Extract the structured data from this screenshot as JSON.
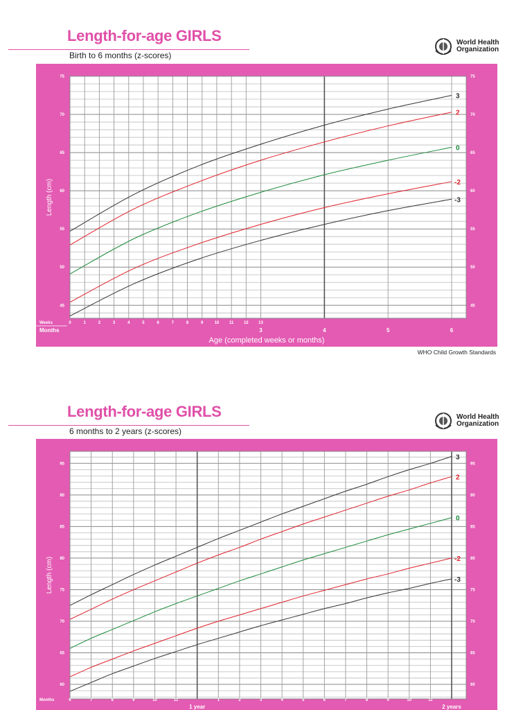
{
  "organization": "World Health Organization",
  "organization_lines": [
    "World Health",
    "Organization"
  ],
  "footer": "WHO Child Growth Standards",
  "colors": {
    "pink": "#e35bb3",
    "title": "#e04fa8",
    "z3": "#333333",
    "z2": "#e0202a",
    "z0": "#1a8a3a"
  },
  "chart_data": [
    {
      "type": "line",
      "title": "Length-for-age GIRLS",
      "subtitle": "Birth to 6 months (z-scores)",
      "ylabel": "Length (cm)",
      "xlabel": "Age (completed weeks or months)",
      "ylim": [
        43.3,
        75
      ],
      "xlim": [
        0,
        6
      ],
      "grid": true,
      "y_ticks": [
        45,
        50,
        55,
        60,
        65,
        70,
        75
      ],
      "week_label": "Weeks",
      "month_label": "Months",
      "week_ticks": [
        "0",
        "1",
        "2",
        "3",
        "4",
        "5",
        "6",
        "7",
        "8",
        "9",
        "10",
        "11",
        "12",
        "13"
      ],
      "month_ticks": [
        "3",
        "4",
        "5",
        "6"
      ],
      "x_months": [
        0,
        1,
        2,
        3,
        4,
        5,
        6
      ],
      "series": [
        {
          "name": "3",
          "color": "#333333",
          "values": [
            54.7,
            59.5,
            63.2,
            66.1,
            68.6,
            70.7,
            72.5
          ]
        },
        {
          "name": "2",
          "color": "#e0202a",
          "values": [
            52.9,
            57.6,
            61.1,
            64.0,
            66.4,
            68.5,
            70.3
          ]
        },
        {
          "name": "0",
          "color": "#1a8a3a",
          "values": [
            49.1,
            53.7,
            57.1,
            59.8,
            62.1,
            64.0,
            65.7
          ]
        },
        {
          "name": "-2",
          "color": "#e0202a",
          "values": [
            45.4,
            49.8,
            53.0,
            55.6,
            57.8,
            59.6,
            61.2
          ]
        },
        {
          "name": "-3",
          "color": "#333333",
          "values": [
            43.6,
            47.8,
            51.0,
            53.5,
            55.6,
            57.4,
            58.9
          ]
        }
      ]
    },
    {
      "type": "line",
      "title": "Length-for-age GIRLS",
      "subtitle": "6 months to 2 years (z-scores)",
      "ylabel": "Length (cm)",
      "ylim": [
        57.7,
        96.9
      ],
      "xlim": [
        6,
        24
      ],
      "grid": true,
      "y_ticks": [
        60,
        65,
        70,
        75,
        80,
        85,
        90,
        95
      ],
      "month_label": "Months",
      "month_ticks": [
        "6",
        "7",
        "8",
        "9",
        "10",
        "11",
        "",
        "1",
        "2",
        "3",
        "4",
        "5",
        "6",
        "7",
        "8",
        "9",
        "10",
        "11",
        ""
      ],
      "year_labels": [
        "1 year",
        "2 years"
      ],
      "x_months": [
        6,
        7,
        8,
        9,
        10,
        11,
        12,
        13,
        14,
        15,
        16,
        17,
        18,
        19,
        20,
        21,
        22,
        23,
        24
      ],
      "series": [
        {
          "name": "3",
          "color": "#333333",
          "values": [
            72.5,
            74.2,
            75.8,
            77.4,
            78.9,
            80.3,
            81.7,
            83.1,
            84.4,
            85.7,
            87.0,
            88.2,
            89.4,
            90.6,
            91.7,
            92.9,
            94.0,
            95.0,
            96.1
          ]
        },
        {
          "name": "2",
          "color": "#e0202a",
          "values": [
            70.3,
            71.9,
            73.5,
            75.0,
            76.4,
            77.8,
            79.2,
            80.5,
            81.7,
            83.0,
            84.2,
            85.4,
            86.5,
            87.6,
            88.7,
            89.8,
            90.8,
            91.9,
            92.9
          ]
        },
        {
          "name": "0",
          "color": "#1a8a3a",
          "values": [
            65.7,
            67.3,
            68.7,
            70.1,
            71.5,
            72.8,
            74.0,
            75.2,
            76.4,
            77.5,
            78.6,
            79.7,
            80.7,
            81.7,
            82.7,
            83.7,
            84.6,
            85.5,
            86.4
          ]
        },
        {
          "name": "-2",
          "color": "#e0202a",
          "values": [
            61.2,
            62.7,
            64.0,
            65.3,
            66.5,
            67.7,
            68.9,
            70.0,
            71.0,
            72.0,
            73.0,
            74.0,
            74.9,
            75.8,
            76.7,
            77.5,
            78.4,
            79.2,
            80.0
          ]
        },
        {
          "name": "-3",
          "color": "#333333",
          "values": [
            58.9,
            60.3,
            61.7,
            62.9,
            64.1,
            65.2,
            66.3,
            67.3,
            68.3,
            69.3,
            70.2,
            71.1,
            72.0,
            72.8,
            73.7,
            74.5,
            75.2,
            76.0,
            76.7
          ]
        }
      ]
    }
  ]
}
